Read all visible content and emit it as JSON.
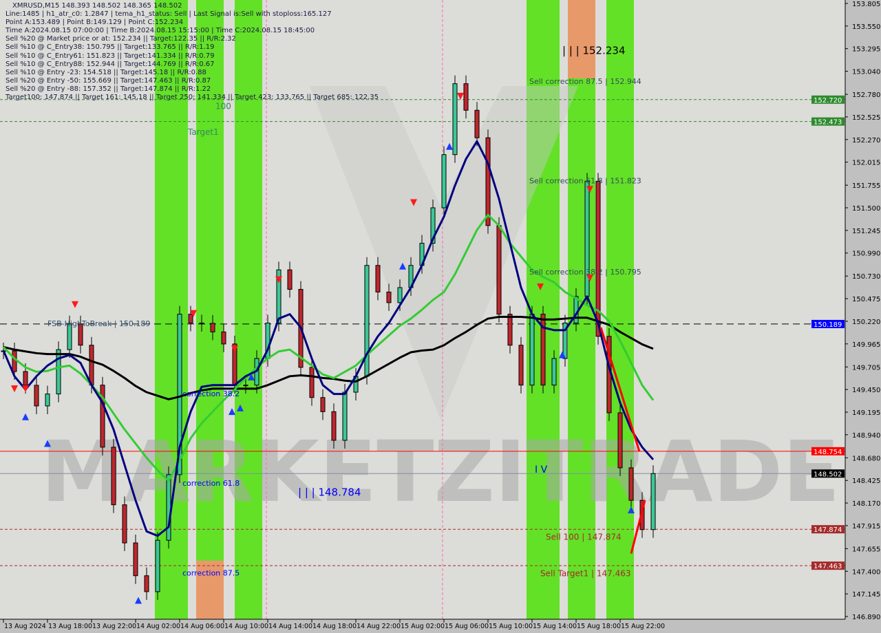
{
  "header": {
    "title": "XMRUSD,M15  148.393 148.502 148.365 148.502",
    "lines": [
      "Line:1485 | h1_atr_c0: 1.2847 | tema_h1_status: Sell | Last Signal is:Sell with stoploss:165.127",
      "Point A:153.489 | Point B:149.129 | Point C:152.234",
      "Time A:2024.08.15 07:00:00 | Time B:2024.08.15 15:15:00 | Time C:2024.08.15 18:45:00",
      "Sell %20 @ Market price or at: 152.234 || Target:122.35 || R/R:2.32",
      "Sell %10 @ C_Entry38: 150.795 || Target:133.765 || R/R:1.19",
      "Sell %10 @ C_Entry61: 151.823 || Target:141.334 || R/R:0.79",
      "Sell %10 @ C_Entry88: 152.944 || Target:144.769 || R/R:0.67",
      "Sell %10 @ Entry -23: 154.518 || Target:145.18 || R/R:0.88",
      "Sell %20 @ Entry -50: 155.669 || Target:147.463 || R/R:0.87",
      "Sell %20 @ Entry -88: 157.352 || Target:147.874 || R/R:1.22",
      "Target100: 147.874 || Target 161: 145.18 || Target 250: 141.334 || Target 423: 133.765 || Target 685: 122.35"
    ]
  },
  "watermark": "MARKETZITRADE",
  "chart_data": {
    "type": "candlestick",
    "symbol": "XMRUSD",
    "timeframe": "M15",
    "ylim": [
      146.89,
      153.805
    ],
    "y_ticks": [
      "153.805",
      "153.550",
      "153.295",
      "153.040",
      "152.780",
      "152.525",
      "152.270",
      "152.015",
      "151.755",
      "151.500",
      "151.245",
      "150.990",
      "150.730",
      "150.475",
      "150.220",
      "149.965",
      "149.705",
      "149.450",
      "149.195",
      "148.940",
      "148.680",
      "148.425",
      "148.170",
      "147.915",
      "147.655",
      "147.400",
      "147.145",
      "146.890"
    ],
    "x_ticks": [
      {
        "label": "13 Aug 2024",
        "t": "08.13 14:00"
      },
      {
        "label": "13 Aug 18:00",
        "t": "08.13 18:00"
      },
      {
        "label": "13 Aug 22:00",
        "t": "08.13 22:00"
      },
      {
        "label": "14 Aug 02:00",
        "t": "08.14 02:00"
      },
      {
        "label": "14 Aug 06:00",
        "t": "08.14 06:00"
      },
      {
        "label": "14 Aug 10:00",
        "t": "08.14 10:00"
      },
      {
        "label": "14 Aug 14:00",
        "t": "08.14 14:00"
      },
      {
        "label": "14 Aug 18:00",
        "t": "08.14 18:00"
      },
      {
        "label": "14 Aug 22:00",
        "t": "08.14 22:00"
      },
      {
        "label": "15 Aug 02:00",
        "t": "08.15 02:00"
      },
      {
        "label": "15 Aug 06:00",
        "t": "08.15 06:00"
      },
      {
        "label": "15 Aug 10:00",
        "t": "08.15 10:00"
      },
      {
        "label": "15 Aug 14:00",
        "t": "08.15 14:00"
      },
      {
        "label": "15 Aug 18:00",
        "t": "08.15 18:00"
      },
      {
        "label": "15 Aug 22:00",
        "t": "08.15 22:00"
      }
    ],
    "times": [
      "08.13 14:00",
      "08.13 15:00",
      "08.13 16:00",
      "08.13 17:00",
      "08.13 18:00",
      "08.13 19:00",
      "08.13 20:00",
      "08.13 21:00",
      "08.13 22:00",
      "08.13 23:00",
      "08.14 00:00",
      "08.14 01:00",
      "08.14 02:00",
      "08.14 03:00",
      "08.14 04:00",
      "08.14 05:00",
      "08.14 06:00",
      "08.14 07:00",
      "08.14 08:00",
      "08.14 09:00",
      "08.14 10:00",
      "08.14 11:00",
      "08.14 12:00",
      "08.14 13:00",
      "08.14 14:00",
      "08.14 15:00",
      "08.14 16:00",
      "08.14 17:00",
      "08.14 18:00",
      "08.14 19:00",
      "08.14 20:00",
      "08.14 21:00",
      "08.14 22:00",
      "08.14 23:00",
      "08.15 00:00",
      "08.15 01:00",
      "08.15 02:00",
      "08.15 03:00",
      "08.15 04:00",
      "08.15 05:00",
      "08.15 06:00",
      "08.15 07:00",
      "08.15 08:00",
      "08.15 09:00",
      "08.15 10:00",
      "08.15 11:00",
      "08.15 12:00",
      "08.15 13:00",
      "08.15 14:00",
      "08.15 15:00",
      "08.15 16:00",
      "08.15 17:00",
      "08.15 18:00",
      "08.15 19:00",
      "08.15 20:00",
      "08.15 21:00",
      "08.15 22:00",
      "08.15 23:00",
      "08.16 00:00",
      "08.16 01:00"
    ],
    "close": [
      149.886,
      149.653,
      149.498,
      149.265,
      149.4,
      149.9,
      150.19,
      149.95,
      149.5,
      148.8,
      148.15,
      147.72,
      147.35,
      147.17,
      147.75,
      148.49,
      150.3,
      150.2,
      150.197,
      150.1,
      149.964,
      149.498,
      149.5,
      149.8,
      150.2,
      150.8,
      150.58,
      149.7,
      149.36,
      149.2,
      148.877,
      149.42,
      149.6,
      150.85,
      150.55,
      150.43,
      150.6,
      150.85,
      151.1,
      151.5,
      152.1,
      152.9,
      152.6,
      152.29,
      151.3,
      150.3,
      149.95,
      149.5,
      150.3,
      149.5,
      149.8,
      150.2,
      150.5,
      151.8,
      150.05,
      149.188,
      148.567,
      148.2,
      147.87,
      148.502
    ],
    "series": [
      {
        "color": "#000000",
        "values": [
          149.93,
          149.9,
          149.88,
          149.86,
          149.85,
          149.85,
          149.85,
          149.82,
          149.77,
          149.73,
          149.66,
          149.58,
          149.49,
          149.42,
          149.38,
          149.34,
          149.37,
          149.41,
          149.44,
          149.46,
          149.46,
          149.46,
          149.46,
          149.46,
          149.5,
          149.55,
          149.6,
          149.61,
          149.6,
          149.58,
          149.57,
          149.55,
          149.54,
          149.6,
          149.67,
          149.74,
          149.81,
          149.87,
          149.89,
          149.9,
          149.95,
          150.03,
          150.1,
          150.18,
          150.25,
          150.27,
          150.27,
          150.27,
          150.26,
          150.24,
          150.24,
          150.25,
          150.26,
          150.26,
          150.22,
          150.18,
          150.1,
          150.03,
          149.96,
          149.91
        ]
      },
      {
        "color": "#33cc33",
        "values": [
          149.93,
          149.8,
          149.7,
          149.65,
          149.66,
          149.7,
          149.72,
          149.63,
          149.5,
          149.36,
          149.18,
          149.0,
          148.84,
          148.68,
          148.54,
          148.42,
          148.65,
          148.9,
          149.07,
          149.2,
          149.33,
          149.45,
          149.58,
          149.7,
          149.8,
          149.88,
          149.9,
          149.81,
          149.72,
          149.62,
          149.58,
          149.65,
          149.72,
          149.84,
          149.95,
          150.06,
          150.17,
          150.25,
          150.35,
          150.46,
          150.55,
          150.75,
          151.0,
          151.25,
          151.42,
          151.3,
          151.1,
          150.95,
          150.8,
          150.72,
          150.66,
          150.55,
          150.48,
          150.4,
          150.34,
          150.22,
          150.0,
          149.75,
          149.5,
          149.33
        ]
      },
      {
        "color": "#000080",
        "values": [
          149.89,
          149.6,
          149.45,
          149.6,
          149.72,
          149.8,
          149.84,
          149.75,
          149.5,
          149.3,
          149.0,
          148.6,
          148.2,
          147.85,
          147.8,
          147.9,
          148.8,
          149.2,
          149.48,
          149.5,
          149.5,
          149.5,
          149.6,
          149.66,
          149.9,
          150.25,
          150.3,
          150.15,
          149.8,
          149.5,
          149.4,
          149.4,
          149.6,
          149.85,
          150.05,
          150.2,
          150.4,
          150.6,
          150.85,
          151.15,
          151.4,
          151.75,
          152.05,
          152.25,
          152.0,
          151.6,
          151.1,
          150.6,
          150.3,
          150.15,
          150.12,
          150.12,
          150.3,
          150.5,
          150.2,
          149.7,
          149.3,
          149.0,
          148.8,
          148.66
        ]
      }
    ],
    "zones": [
      {
        "from": "08.14 03:45",
        "to": "08.14 06:45",
        "color": "#5ce01e"
      },
      {
        "from": "08.14 07:30",
        "to": "08.14 10:00",
        "color": "#5ce01e",
        "bottom_color": "#e8996a",
        "bottom_from_price": 147.52
      },
      {
        "from": "08.14 11:00",
        "to": "08.14 13:30",
        "color": "#5ce01e"
      },
      {
        "from": "08.15 13:30",
        "to": "08.15 16:30",
        "color": "#5ce01e"
      },
      {
        "from": "08.15 17:15",
        "to": "08.15 19:45",
        "color": "#5ce01e",
        "top_color": "#e8996a",
        "top_to_price": 152.96
      },
      {
        "from": "08.15 20:45",
        "to": "08.15 23:15",
        "color": "#5ce01e"
      }
    ],
    "hlines": [
      {
        "price": 152.72,
        "label": "152.720",
        "color": "#2e8b2e",
        "style": "dashed",
        "label_bg": "#2e8b2e"
      },
      {
        "price": 152.473,
        "label": "152.473",
        "color": "#2e8b2e",
        "style": "dashed",
        "label_bg": "#2e8b2e"
      },
      {
        "price": 150.189,
        "label": "150.189",
        "color": "#000000",
        "style": "dashed",
        "label_bg": "#0000ff"
      },
      {
        "price": 148.754,
        "label": "148.754",
        "color": "#ff0000",
        "style": "solid",
        "label_bg": "#ff0000"
      },
      {
        "price": 148.502,
        "label": "148.502",
        "color": "#8090a0",
        "style": "solid",
        "label_bg": "#000000"
      },
      {
        "price": 147.874,
        "label": "147.874",
        "color": "#a52a2a",
        "style": "dashed",
        "label_bg": "#a52a2a"
      },
      {
        "price": 147.463,
        "label": "147.463",
        "color": "#a52a2a",
        "style": "dashed",
        "label_bg": "#a52a2a"
      }
    ],
    "annotations": [
      {
        "text": "| | | 152.234",
        "t": "08.15 16:45",
        "price": 153.28,
        "color": "#000000",
        "size": 15
      },
      {
        "text": "Sell correction 87.5 | 152.944",
        "t": "08.15 13:45",
        "price": 152.944,
        "color": "#2f4f4f",
        "size": 11
      },
      {
        "text": "Sell correction 61.8 | 151.823",
        "t": "08.15 13:45",
        "price": 151.823,
        "color": "#2f4f4f",
        "size": 11
      },
      {
        "text": "Sell correction 38.2 | 150.795",
        "t": "08.15 13:45",
        "price": 150.795,
        "color": "#2f4f4f",
        "size": 11
      },
      {
        "text": "Sell 100 | 147.874",
        "t": "08.15 15:15",
        "price": 147.8,
        "color": "#a52a2a",
        "size": 12
      },
      {
        "text": "Sell Target1 | 147.463",
        "t": "08.15 14:45",
        "price": 147.39,
        "color": "#a52a2a",
        "size": 12
      },
      {
        "text": "| | | 148.784",
        "t": "08.14 16:45",
        "price": 148.3,
        "color": "#0000ff",
        "size": 15
      },
      {
        "text": "I V",
        "t": "08.15 14:15",
        "price": 148.56,
        "color": "#0000ff",
        "size": 14
      },
      {
        "text": "correction 38.2",
        "t": "08.14 06:15",
        "price": 149.42,
        "color": "#0000ff",
        "size": 11
      },
      {
        "text": "correction 61.8",
        "t": "08.14 06:15",
        "price": 148.41,
        "color": "#0000ff",
        "size": 11
      },
      {
        "text": "correction 87.5",
        "t": "08.14 06:15",
        "price": 147.4,
        "color": "#0000ff",
        "size": 11
      },
      {
        "text": "FSB-HighToBreak | 150.189",
        "t": "08.13 18:00",
        "price": 150.21,
        "color": "#2f4f6f",
        "size": 11
      },
      {
        "text": "100",
        "t": "08.14 09:15",
        "price": 152.66,
        "color": "#2e8b57",
        "size": 12
      },
      {
        "text": "Target1",
        "t": "08.14 06:45",
        "price": 152.37,
        "color": "#2e8b57",
        "size": 12
      }
    ],
    "signals": [
      {
        "t": "08.13 15:00",
        "price": 149.45,
        "dir": "sell"
      },
      {
        "t": "08.13 16:00",
        "price": 149.45,
        "dir": "sell"
      },
      {
        "t": "08.13 20:30",
        "price": 150.4,
        "dir": "sell"
      },
      {
        "t": "08.13 16:00",
        "price": 149.15,
        "dir": "buy"
      },
      {
        "t": "08.13 18:00",
        "price": 148.85,
        "dir": "buy"
      },
      {
        "t": "08.14 02:15",
        "price": 147.08,
        "dir": "buy"
      },
      {
        "t": "08.14 10:45",
        "price": 149.21,
        "dir": "buy"
      },
      {
        "t": "08.14 11:30",
        "price": 149.25,
        "dir": "buy"
      },
      {
        "t": "08.14 12:30",
        "price": 149.6,
        "dir": "buy"
      },
      {
        "t": "08.14 07:15",
        "price": 150.3,
        "dir": "sell"
      },
      {
        "t": "08.14 11:00",
        "price": 149.9,
        "dir": "sell"
      },
      {
        "t": "08.14 15:00",
        "price": 150.68,
        "dir": "sell"
      },
      {
        "t": "08.15 03:15",
        "price": 151.55,
        "dir": "sell"
      },
      {
        "t": "08.15 07:30",
        "price": 152.75,
        "dir": "sell"
      },
      {
        "t": "08.15 02:15",
        "price": 150.85,
        "dir": "buy"
      },
      {
        "t": "08.15 06:30",
        "price": 152.2,
        "dir": "buy"
      },
      {
        "t": "08.15 14:45",
        "price": 150.6,
        "dir": "sell"
      },
      {
        "t": "08.15 16:45",
        "price": 149.85,
        "dir": "buy"
      },
      {
        "t": "08.15 19:15",
        "price": 151.7,
        "dir": "sell"
      },
      {
        "t": "08.15 19:15",
        "price": 150.7,
        "dir": "sell"
      },
      {
        "t": "08.15 23:00",
        "price": 148.1,
        "dir": "buy"
      }
    ],
    "trend_lines": [
      {
        "from": [
          "08.15 20:15",
          150.15
        ],
        "to": [
          "08.15 23:45",
          148.75
        ],
        "color": "#ff0000"
      },
      {
        "from": [
          "08.15 23:00",
          147.6
        ],
        "to": [
          "08.16 00:15",
          148.2
        ],
        "color": "#ff0000"
      }
    ]
  }
}
